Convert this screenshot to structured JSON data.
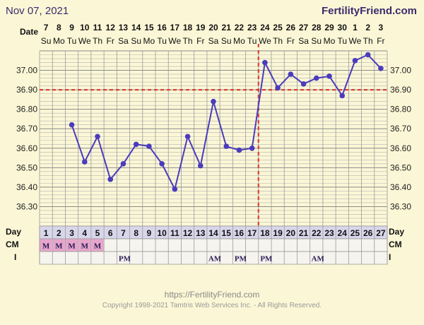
{
  "header": {
    "date": "Nov 07, 2021",
    "brand": "FertilityFriend.com"
  },
  "footer": {
    "url": "https://FertilityFriend.com",
    "copyright": "Copyright 1998-2021 Tamtris Web Services Inc. - All Rights Reserved."
  },
  "labels": {
    "date": "Date",
    "day": "Day",
    "cm": "CM",
    "intercourse": "I"
  },
  "colors": {
    "line": "#4b3bbd",
    "coverline": "#d9423a",
    "grid": "#999999",
    "mucus_fill": "#e6a6cc",
    "background": "#fbf7d6"
  },
  "chart_data": {
    "type": "line",
    "dates": [
      "7",
      "8",
      "9",
      "10",
      "11",
      "12",
      "13",
      "14",
      "15",
      "16",
      "17",
      "18",
      "19",
      "20",
      "21",
      "22",
      "23",
      "24",
      "25",
      "26",
      "27",
      "28",
      "29",
      "30",
      "1",
      "2",
      "3"
    ],
    "weekdays": [
      "Su",
      "Mo",
      "Tu",
      "We",
      "Th",
      "Fr",
      "Sa",
      "Su",
      "Mo",
      "Tu",
      "We",
      "Th",
      "Fr",
      "Sa",
      "Su",
      "Mo",
      "Tu",
      "We",
      "Th",
      "Fr",
      "Sa",
      "Su",
      "Mo",
      "Tu",
      "We",
      "Th",
      "Fr"
    ],
    "cycle_days": [
      1,
      2,
      3,
      4,
      5,
      6,
      7,
      8,
      9,
      10,
      11,
      12,
      13,
      14,
      15,
      16,
      17,
      18,
      19,
      20,
      21,
      22,
      23,
      24,
      25,
      26,
      27
    ],
    "temperatures": [
      null,
      null,
      36.72,
      36.53,
      36.66,
      36.44,
      36.52,
      36.62,
      36.61,
      36.52,
      36.39,
      36.66,
      36.51,
      36.84,
      36.61,
      36.59,
      36.6,
      37.04,
      36.91,
      36.98,
      36.93,
      36.96,
      36.97,
      36.87,
      37.05,
      37.08,
      37.01
    ],
    "cervical_mucus": [
      "M",
      "M",
      "M",
      "M",
      "M",
      "",
      "",
      "",
      "",
      "",
      "",
      "",
      "",
      "",
      "",
      "",
      "",
      "",
      "",
      "",
      "",
      "",
      "",
      "",
      "",
      "",
      ""
    ],
    "intercourse": [
      "",
      "",
      "",
      "",
      "",
      "",
      "PM",
      "",
      "",
      "",
      "",
      "",
      "",
      "AM",
      "",
      "PM",
      "",
      "PM",
      "",
      "",
      "",
      "AM",
      "",
      "",
      "",
      "",
      ""
    ],
    "y_ticks": [
      "37.00",
      "36.90",
      "36.80",
      "36.70",
      "36.60",
      "36.50",
      "36.40",
      "36.30"
    ],
    "ylim": [
      36.2,
      37.1
    ],
    "coverline": 36.9,
    "ovulation_day": 17
  }
}
